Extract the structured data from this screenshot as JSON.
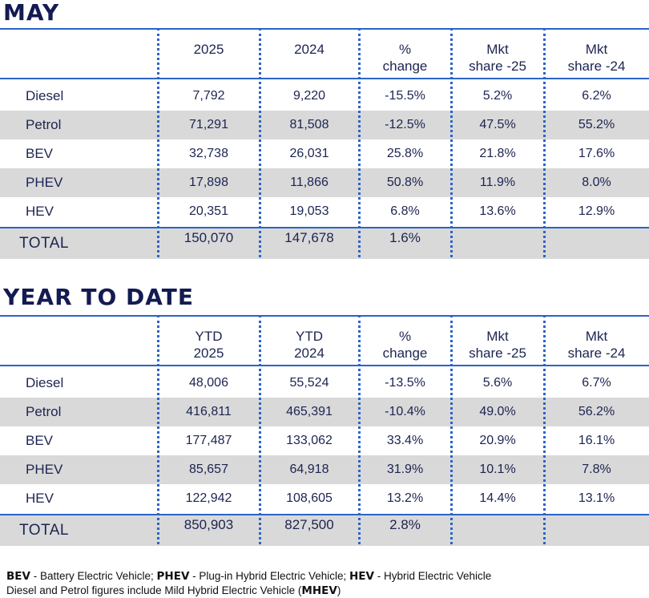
{
  "sections": [
    {
      "title": "MAY",
      "headers": [
        [
          "",
          ""
        ],
        [
          "2025",
          ""
        ],
        [
          "2024",
          ""
        ],
        [
          "%",
          "change"
        ],
        [
          "Mkt",
          "share -25"
        ],
        [
          "Mkt",
          "share -24"
        ]
      ],
      "rows": [
        [
          "Diesel",
          "7,792",
          "9,220",
          "-15.5%",
          "5.2%",
          "6.2%"
        ],
        [
          "Petrol",
          "71,291",
          "81,508",
          "-12.5%",
          "47.5%",
          "55.2%"
        ],
        [
          "BEV",
          "32,738",
          "26,031",
          "25.8%",
          "21.8%",
          "17.6%"
        ],
        [
          "PHEV",
          "17,898",
          "11,866",
          "50.8%",
          "11.9%",
          "8.0%"
        ],
        [
          "HEV",
          "20,351",
          "19,053",
          "6.8%",
          "13.6%",
          "12.9%"
        ]
      ],
      "total": [
        "TOTAL",
        "150,070",
        "147,678",
        "1.6%",
        "",
        ""
      ]
    },
    {
      "title": "YEAR TO DATE",
      "headers": [
        [
          "",
          ""
        ],
        [
          "YTD",
          "2025"
        ],
        [
          "YTD",
          "2024"
        ],
        [
          "%",
          "change"
        ],
        [
          "Mkt",
          "share -25"
        ],
        [
          "Mkt",
          "share -24"
        ]
      ],
      "rows": [
        [
          "Diesel",
          "48,006",
          "55,524",
          "-13.5%",
          "5.6%",
          "6.7%"
        ],
        [
          "Petrol",
          "416,811",
          "465,391",
          "-10.4%",
          "49.0%",
          "56.2%"
        ],
        [
          "BEV",
          "177,487",
          "133,062",
          "33.4%",
          "20.9%",
          "16.1%"
        ],
        [
          "PHEV",
          "85,657",
          "64,918",
          "31.9%",
          "10.1%",
          "7.8%"
        ],
        [
          "HEV",
          "122,942",
          "108,605",
          "13.2%",
          "14.4%",
          "13.1%"
        ]
      ],
      "total": [
        "TOTAL",
        "850,903",
        "827,500",
        "2.8%",
        "",
        ""
      ]
    }
  ],
  "footer": {
    "bev_abbr": "BEV",
    "bev_text": " - Battery Electric Vehicle; ",
    "phev_abbr": "PHEV",
    "phev_text": " - Plug-in Hybrid Electric Vehicle; ",
    "hev_abbr": "HEV",
    "hev_text": " - Hybrid Electric Vehicle",
    "line2_text": "Diesel and Petrol figures include Mild Hybrid Electric Vehicle (",
    "mhev_abbr": "MHEV",
    "line2_close": ")"
  },
  "colors": {
    "accent": "#2b64c6",
    "title": "#141a52",
    "text": "#1c2451",
    "shade": "#d9d9d9"
  }
}
